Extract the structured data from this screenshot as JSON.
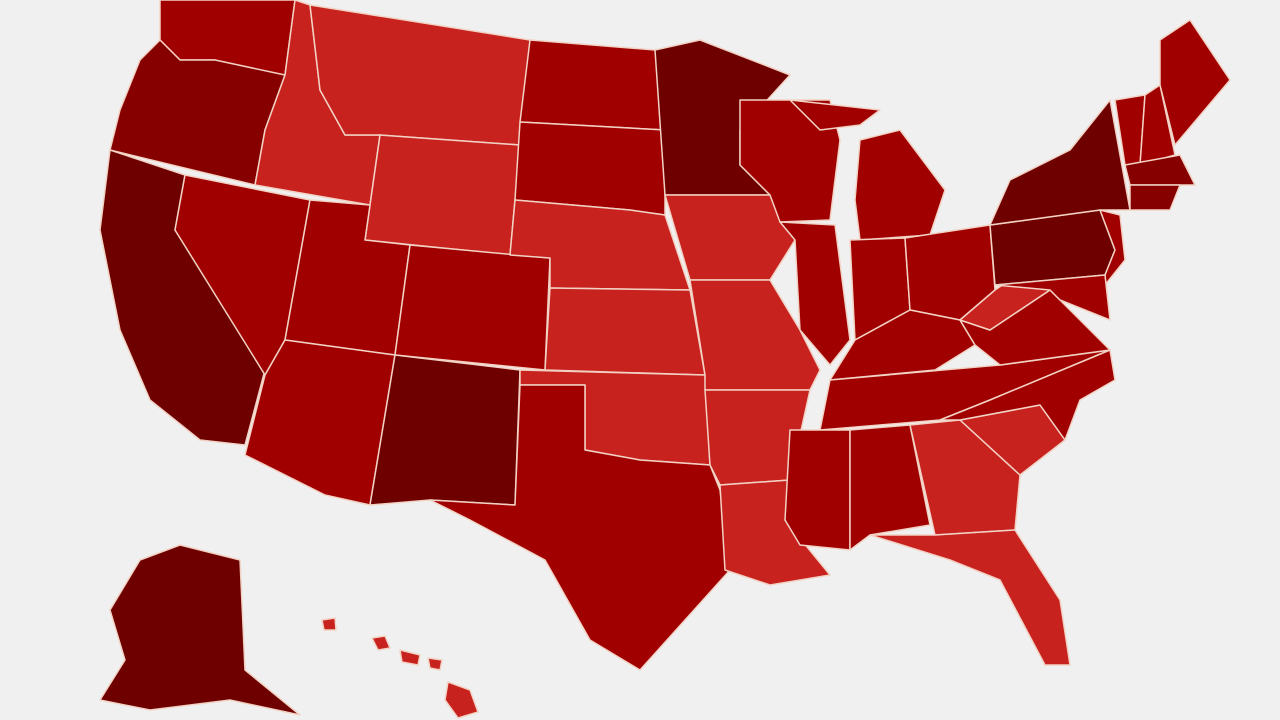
{
  "map": {
    "fills": [
      "#6f0000",
      "#870000",
      "#a00000",
      "#c8221f"
    ]
  }
}
